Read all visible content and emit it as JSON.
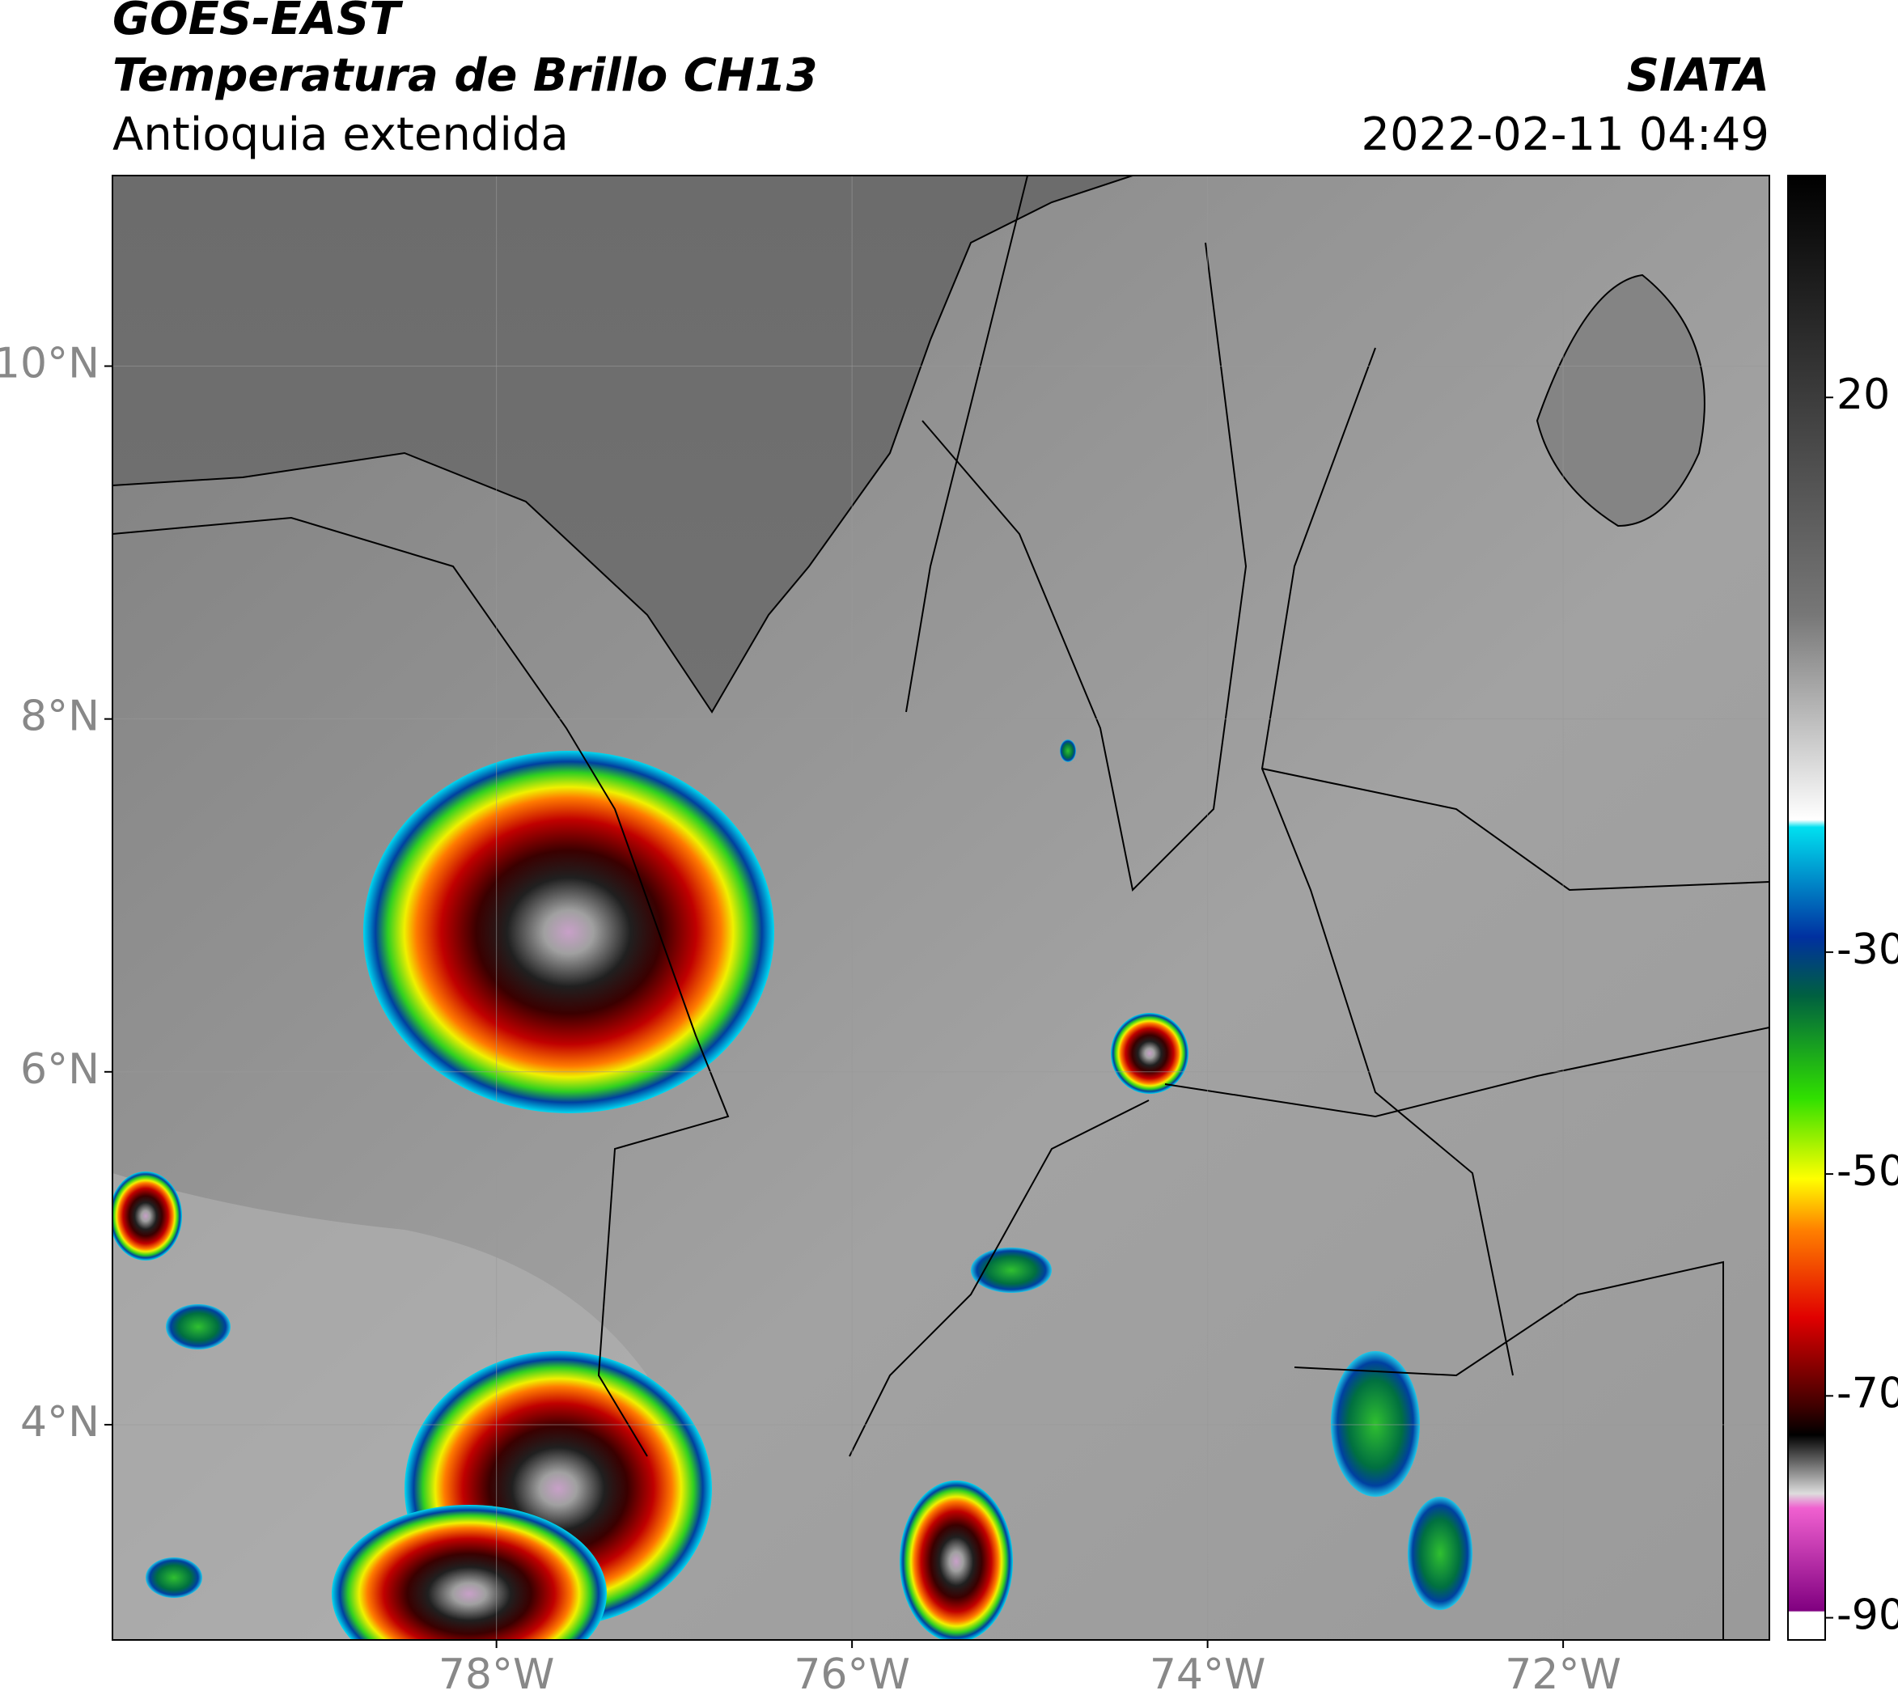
{
  "chart_data": {
    "type": "map",
    "title": "GOES-EAST",
    "subtitle": "Temperatura de Brillo CH13",
    "region": "Antioquia extendida",
    "source": "SIATA",
    "datetime": "2022-02-11 04:49",
    "xlim": [
      -80.16,
      -70.84
    ],
    "ylim": [
      2.78,
      11.08
    ],
    "xticks": [
      {
        "value": -78,
        "label": "78°W"
      },
      {
        "value": -76,
        "label": "76°W"
      },
      {
        "value": -74,
        "label": "74°W"
      },
      {
        "value": -72,
        "label": "72°W"
      }
    ],
    "yticks": [
      {
        "value": 10,
        "label": "10°N"
      },
      {
        "value": 8,
        "label": "8°N"
      },
      {
        "value": 6,
        "label": "6°N"
      },
      {
        "value": 4,
        "label": "4°N"
      }
    ],
    "grid": true,
    "colorbar": {
      "lim": [
        -92,
        40
      ],
      "ticks": [
        20,
        -30,
        -50,
        -70,
        -90
      ]
    }
  }
}
